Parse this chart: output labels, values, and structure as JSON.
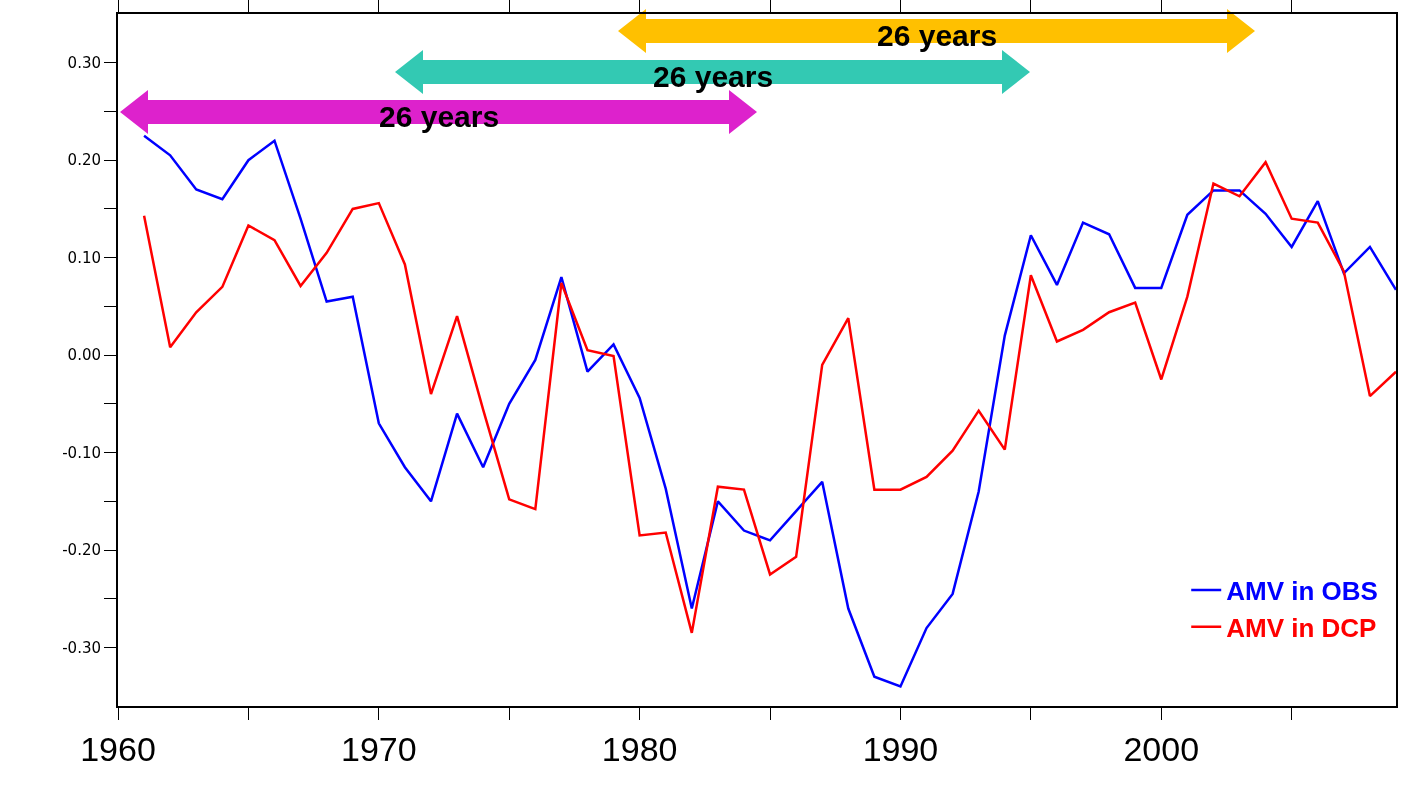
{
  "chart_data": {
    "type": "line",
    "x": [
      1961,
      1962,
      1963,
      1964,
      1965,
      1966,
      1967,
      1968,
      1969,
      1970,
      1971,
      1972,
      1973,
      1974,
      1975,
      1976,
      1977,
      1978,
      1979,
      1980,
      1981,
      1982,
      1983,
      1984,
      1985,
      1986,
      1987,
      1988,
      1989,
      1990,
      1991,
      1992,
      1993,
      1994,
      1995,
      1996,
      1997,
      1998,
      1999,
      2000,
      2001,
      2002,
      2003,
      2004,
      2005,
      2006,
      2007,
      2008,
      2009
    ],
    "series": [
      {
        "name": "AMV in OBS",
        "color": "#0000ff",
        "values": [
          0.225,
          0.205,
          0.17,
          0.16,
          0.2,
          0.22,
          0.14,
          0.055,
          0.06,
          -0.07,
          -0.115,
          -0.15,
          -0.06,
          -0.115,
          -0.05,
          -0.005,
          0.08,
          -0.017,
          0.011,
          -0.044,
          -0.137,
          -0.26,
          -0.15,
          -0.18,
          -0.19,
          -0.16,
          -0.13,
          -0.26,
          -0.33,
          -0.34,
          -0.28,
          -0.245,
          -0.14,
          0.02,
          0.123,
          0.072,
          0.136,
          0.124,
          0.069,
          0.069,
          0.144,
          0.169,
          0.169,
          0.145,
          0.111,
          0.158,
          0.084,
          0.111,
          0.067
        ]
      },
      {
        "name": "AMV in DCP",
        "color": "#ff0000",
        "values": [
          0.143,
          0.008,
          0.044,
          0.07,
          0.133,
          0.118,
          0.071,
          0.105,
          0.15,
          0.156,
          0.093,
          -0.04,
          0.04,
          -0.056,
          -0.148,
          -0.158,
          0.074,
          0.005,
          -0.001,
          -0.185,
          -0.182,
          -0.285,
          -0.135,
          -0.138,
          -0.225,
          -0.207,
          -0.01,
          0.038,
          -0.138,
          -0.138,
          -0.125,
          -0.098,
          -0.057,
          -0.097,
          0.082,
          0.014,
          0.026,
          0.044,
          0.054,
          -0.025,
          0.06,
          0.176,
          0.163,
          0.198,
          0.14,
          0.136,
          0.086,
          -0.042,
          -0.017
        ]
      }
    ],
    "xlim": [
      1960,
      2009
    ],
    "xticks": [
      1960,
      {
        "value": 1965,
        "label": null
      },
      1970,
      {
        "value": 1975,
        "label": null
      },
      1980,
      {
        "value": 1985,
        "label": null
      },
      1990,
      {
        "value": 1995,
        "label": null
      },
      2000,
      {
        "value": 2005,
        "label": null
      }
    ],
    "ylim": [
      -0.36,
      0.35
    ],
    "yticks": [
      {
        "value": -0.3,
        "label": "-0.30"
      },
      {
        "value": -0.25,
        "label": null
      },
      {
        "value": -0.2,
        "label": "-0.20"
      },
      {
        "value": -0.15,
        "label": null
      },
      {
        "value": -0.1,
        "label": "-0.10"
      },
      {
        "value": -0.05,
        "label": null
      },
      {
        "value": 0,
        "label": "0.00"
      },
      {
        "value": 0.05,
        "label": null
      },
      {
        "value": 0.1,
        "label": "0.10"
      },
      {
        "value": 0.15,
        "label": null
      },
      {
        "value": 0.2,
        "label": "0.20"
      },
      {
        "value": 0.25,
        "label": null
      },
      {
        "value": 0.3,
        "label": "0.30"
      }
    ],
    "annotations": [
      "26 years",
      "26 years",
      "26 years"
    ],
    "grid": false,
    "legend": "bottom right",
    "marker": "none",
    "line_style": "solid"
  }
}
